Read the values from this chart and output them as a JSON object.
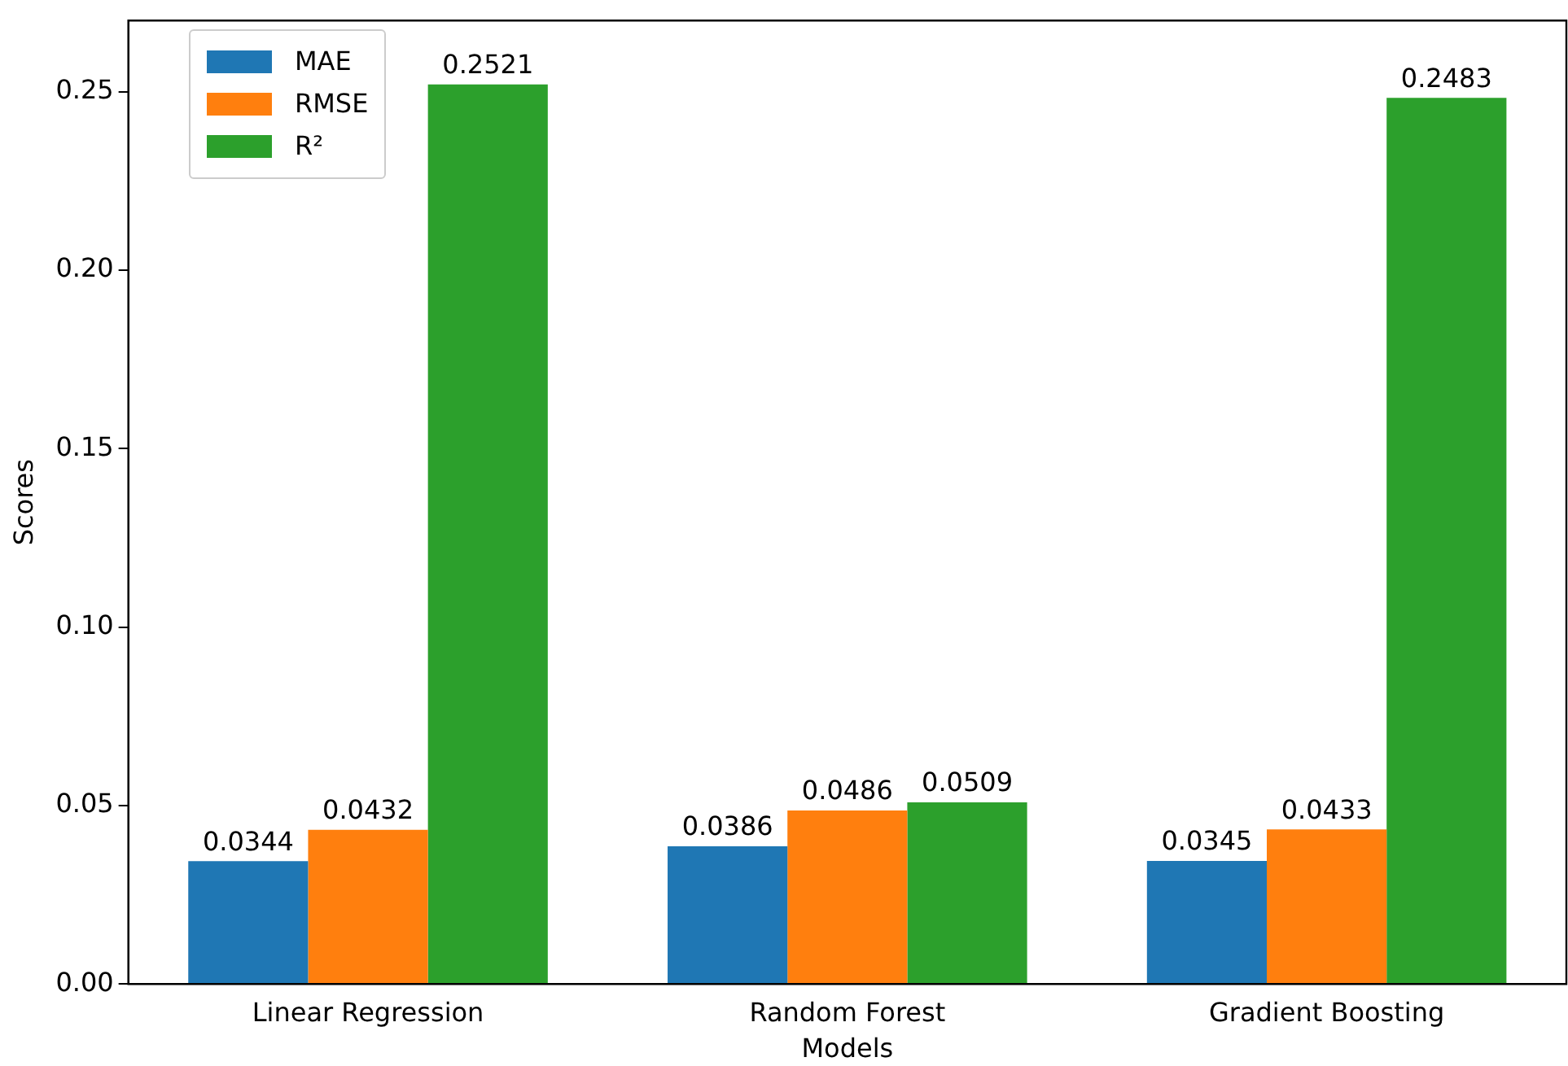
{
  "chart_data": {
    "type": "bar",
    "xlabel": "Models",
    "ylabel": "Scores",
    "categories": [
      "Linear Regression",
      "Random Forest",
      "Gradient Boosting"
    ],
    "series": [
      {
        "name": "MAE",
        "color": "#1f77b4",
        "values": [
          0.0344,
          0.0386,
          0.0345
        ]
      },
      {
        "name": "RMSE",
        "color": "#ff7f0e",
        "values": [
          0.0432,
          0.0486,
          0.0433
        ]
      },
      {
        "name": "R²",
        "color": "#2ca02c",
        "values": [
          0.2521,
          0.0509,
          0.2483
        ]
      }
    ],
    "ylim": [
      0,
      0.27
    ],
    "yticks": [
      {
        "value": 0,
        "label": "0.00"
      },
      {
        "value": 0.05,
        "label": "0.05"
      },
      {
        "value": 0.1,
        "label": "0.10"
      },
      {
        "value": 0.15,
        "label": "0.15"
      },
      {
        "value": 0.2,
        "label": "0.20"
      },
      {
        "value": 0.25,
        "label": "0.25"
      }
    ],
    "grid": false,
    "legend": "top left",
    "data_labels": true
  }
}
